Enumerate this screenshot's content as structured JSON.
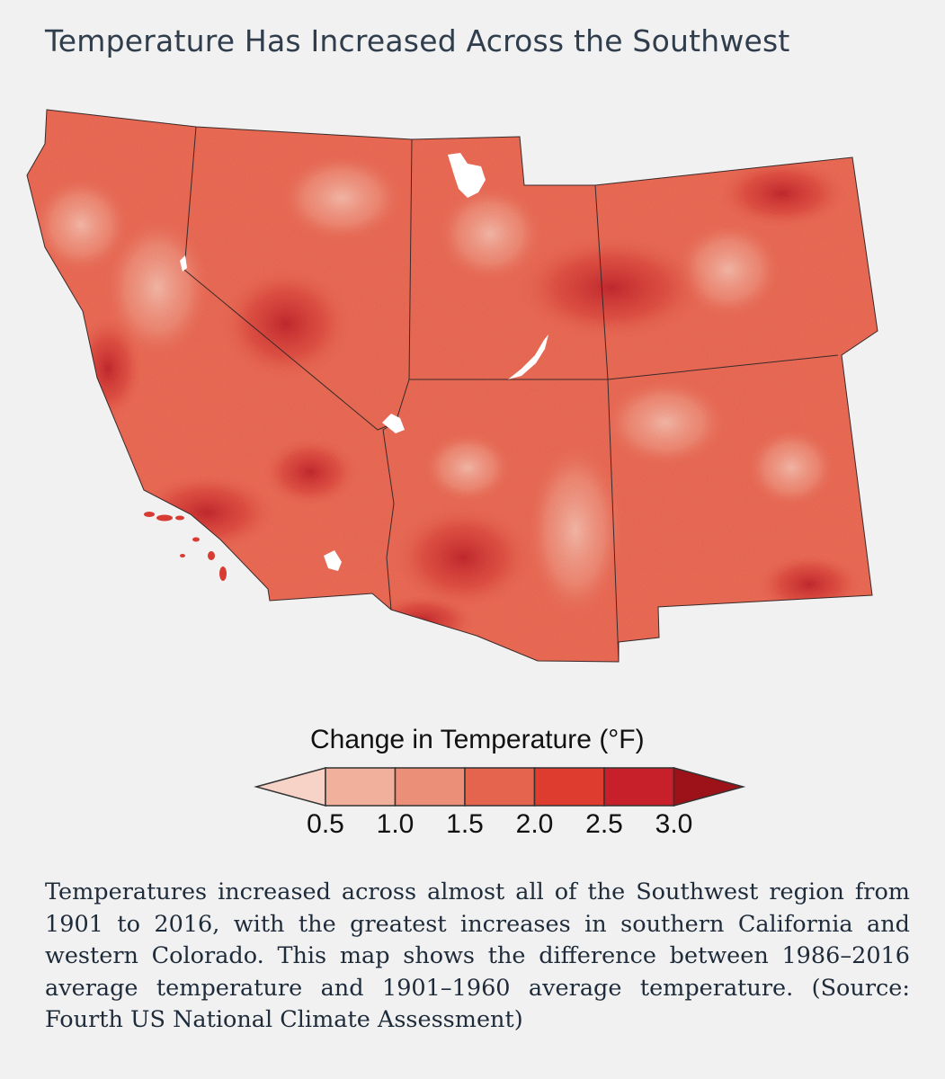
{
  "title": "Temperature Has Increased Across the Southwest",
  "map": {
    "region": "Southwest United States",
    "states": [
      "California",
      "Nevada",
      "Utah",
      "Colorado",
      "Arizona",
      "New Mexico"
    ],
    "fill_colors": {
      "base": "#e5644e",
      "low": "#f0b19f",
      "high": "#c8202a"
    }
  },
  "legend": {
    "title": "Change in Temperature (°F)",
    "ticks": [
      "0.5",
      "1.0",
      "1.5",
      "2.0",
      "2.5",
      "3.0"
    ],
    "colors": [
      "#f6d3c6",
      "#f0b09c",
      "#ec8f78",
      "#e5644e",
      "#df3c30",
      "#c8202a",
      "#9c1218"
    ]
  },
  "caption": "Temperatures increased across almost all of the Southwest region from 1901 to 2016, with the greatest increases in southern California and western Colorado. This map shows the difference between 1986–2016 average temperature and 1901–1960 average temperature. (Source: Fourth US National Climate Assessment)"
}
